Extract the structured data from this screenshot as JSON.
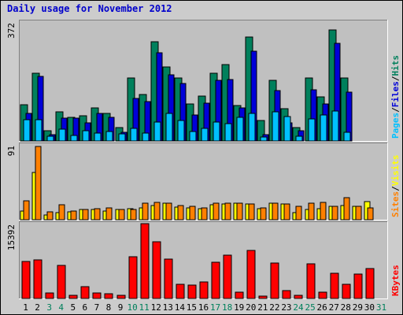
{
  "window": {
    "title": "Daily usage for November 2012"
  },
  "colors": {
    "background": "#cccccc",
    "panel": "#c0c0c0",
    "hits": "#00805c",
    "files": "#0000d8",
    "pages": "#00c0ff",
    "visits": "#ffff00",
    "sites": "#ff8000",
    "kbytes": "#ff0000",
    "title": "#0000cc",
    "weekend_label": "#00805c"
  },
  "chart_data": [
    {
      "type": "bar",
      "name": "requests",
      "ylabel": "Pages / Files / Hits",
      "ylabel_parts": [
        "Pages",
        "Files",
        "Hits"
      ],
      "ymax_label": "372",
      "ylim": [
        0,
        372
      ],
      "categories": [
        "1",
        "2",
        "3",
        "4",
        "5",
        "6",
        "7",
        "8",
        "9",
        "10",
        "11",
        "12",
        "13",
        "14",
        "15",
        "16",
        "17",
        "18",
        "19",
        "20",
        "21",
        "22",
        "23",
        "24",
        "25",
        "26",
        "27",
        "28",
        "29",
        "30",
        "31"
      ],
      "series": [
        {
          "name": "Hits",
          "color_key": "hits",
          "values": [
            113,
            212,
            32,
            92,
            74,
            78,
            103,
            85,
            42,
            198,
            146,
            311,
            232,
            196,
            115,
            140,
            211,
            239,
            112,
            325,
            63,
            190,
            102,
            42,
            198,
            139,
            348,
            198,
            0,
            0,
            0
          ]
        },
        {
          "name": "Files",
          "color_key": "files",
          "values": [
            86,
            203,
            19,
            71,
            72,
            56,
            85,
            73,
            27,
            133,
            123,
            277,
            206,
            181,
            81,
            119,
            189,
            193,
            103,
            280,
            20,
            157,
            56,
            31,
            161,
            116,
            306,
            152,
            0,
            0,
            0
          ]
        },
        {
          "name": "Pages",
          "color_key": "pages",
          "values": [
            66,
            66,
            14,
            37,
            18,
            32,
            25,
            30,
            22,
            40,
            25,
            59,
            87,
            64,
            30,
            40,
            60,
            54,
            75,
            86,
            12,
            91,
            76,
            14,
            68,
            82,
            93,
            28,
            0,
            0,
            0
          ]
        }
      ]
    },
    {
      "type": "bar",
      "name": "visitors",
      "ylabel": "Sites / Visits",
      "ylabel_parts": [
        "Sites",
        "Visits"
      ],
      "ymax_label": "91",
      "ylim": [
        0,
        91
      ],
      "categories": [
        "1",
        "2",
        "3",
        "4",
        "5",
        "6",
        "7",
        "8",
        "9",
        "10",
        "11",
        "12",
        "13",
        "14",
        "15",
        "16",
        "17",
        "18",
        "19",
        "20",
        "21",
        "22",
        "23",
        "24",
        "25",
        "26",
        "27",
        "28",
        "29",
        "30",
        "31"
      ],
      "series": [
        {
          "name": "Visits",
          "color_key": "visits",
          "values": [
            11,
            57,
            6,
            9,
            10,
            12,
            12,
            11,
            12,
            13,
            14,
            17,
            20,
            15,
            14,
            13,
            18,
            19,
            20,
            19,
            13,
            20,
            19,
            9,
            12,
            13,
            16,
            17,
            16,
            22,
            0
          ]
        },
        {
          "name": "Sites",
          "color_key": "sites",
          "values": [
            23,
            89,
            10,
            18,
            11,
            12,
            13,
            14,
            12,
            12,
            20,
            21,
            20,
            17,
            16,
            14,
            20,
            20,
            20,
            19,
            14,
            20,
            19,
            16,
            20,
            21,
            16,
            27,
            16,
            14,
            0
          ]
        }
      ]
    },
    {
      "type": "bar",
      "name": "traffic",
      "ylabel": "KBytes",
      "ymax_label": "15392",
      "ylim": [
        0,
        15392
      ],
      "categories": [
        "1",
        "2",
        "3",
        "4",
        "5",
        "6",
        "7",
        "8",
        "9",
        "10",
        "11",
        "12",
        "13",
        "14",
        "15",
        "16",
        "17",
        "18",
        "19",
        "20",
        "21",
        "22",
        "23",
        "24",
        "25",
        "26",
        "27",
        "28",
        "29",
        "30",
        "31"
      ],
      "series": [
        {
          "name": "KBytes",
          "color_key": "kbytes",
          "values": [
            7650,
            7930,
            1140,
            6860,
            710,
            2390,
            1130,
            1000,
            570,
            8630,
            15392,
            11730,
            8170,
            2890,
            2740,
            3440,
            7510,
            8910,
            1350,
            9940,
            540,
            7290,
            1580,
            640,
            7070,
            1260,
            5110,
            2900,
            5040,
            6120,
            0
          ]
        }
      ],
      "weekend_days": [
        "3",
        "4",
        "10",
        "11",
        "17",
        "18",
        "24",
        "25",
        "31"
      ]
    }
  ]
}
